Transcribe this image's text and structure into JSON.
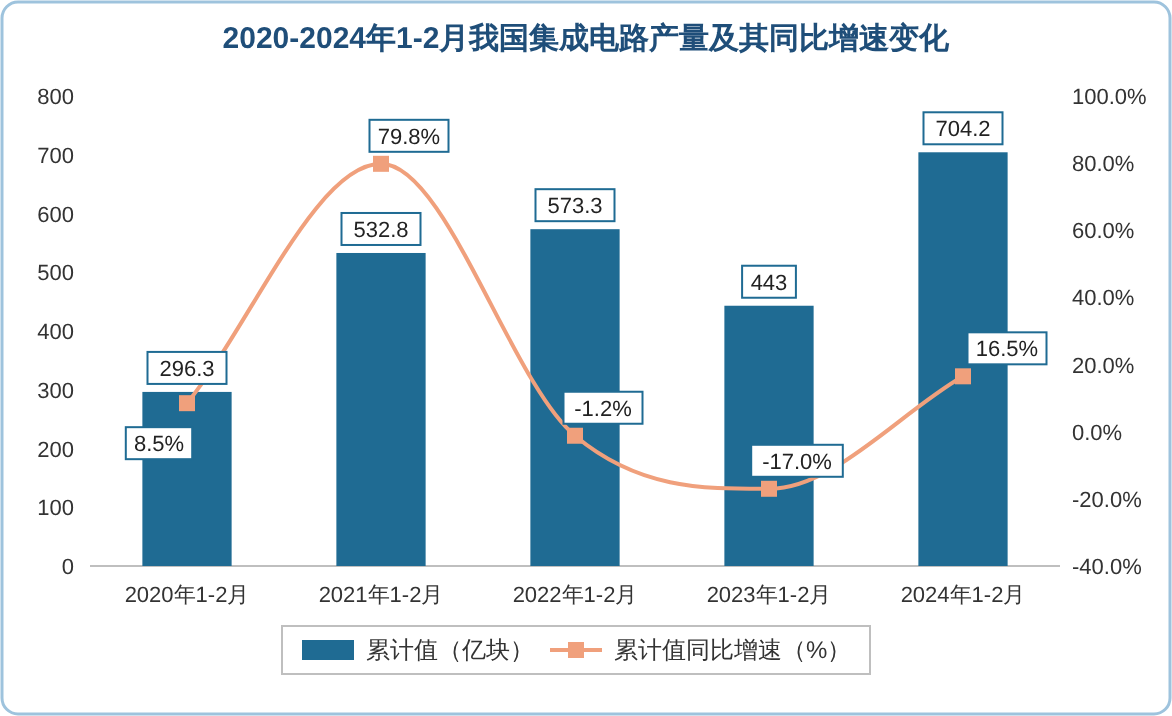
{
  "chart_data": {
    "type": "bar",
    "title": "2020-2024年1-2月我国集成电路产量及其同比增速变化",
    "categories": [
      "2020年1-2月",
      "2021年1-2月",
      "2022年1-2月",
      "2023年1-2月",
      "2024年1-2月"
    ],
    "series": [
      {
        "name": "累计值（亿块）",
        "color": "#1f6b93",
        "values": [
          296.3,
          532.8,
          573.3,
          443,
          704.2
        ],
        "value_labels": [
          "296.3",
          "532.8",
          "573.3",
          "443",
          "704.2"
        ]
      },
      {
        "name": "累计值同比增速（%）",
        "type": "line",
        "axis": "y2",
        "color": "#f0a07c",
        "marker": "square",
        "values": [
          8.5,
          79.8,
          -1.2,
          -17.0,
          16.5
        ],
        "value_labels": [
          "8.5%",
          "79.8%",
          "-1.2%",
          "-17.0%",
          "16.5%"
        ]
      }
    ],
    "ylim": [
      0,
      800
    ],
    "yticks": [
      0,
      100,
      200,
      300,
      400,
      500,
      600,
      700,
      800
    ],
    "y2lim": [
      -40,
      100
    ],
    "y2ticks": [
      {
        "value": -40,
        "label": "-40.0%"
      },
      {
        "value": -20,
        "label": "-20.0%"
      },
      {
        "value": 0,
        "label": "0.0%"
      },
      {
        "value": 20,
        "label": "20.0%"
      },
      {
        "value": 40,
        "label": "40.0%"
      },
      {
        "value": 60,
        "label": "60.0%"
      },
      {
        "value": 80,
        "label": "80.0%"
      },
      {
        "value": 100,
        "label": "100.0%"
      }
    ],
    "legend": "bottom"
  }
}
